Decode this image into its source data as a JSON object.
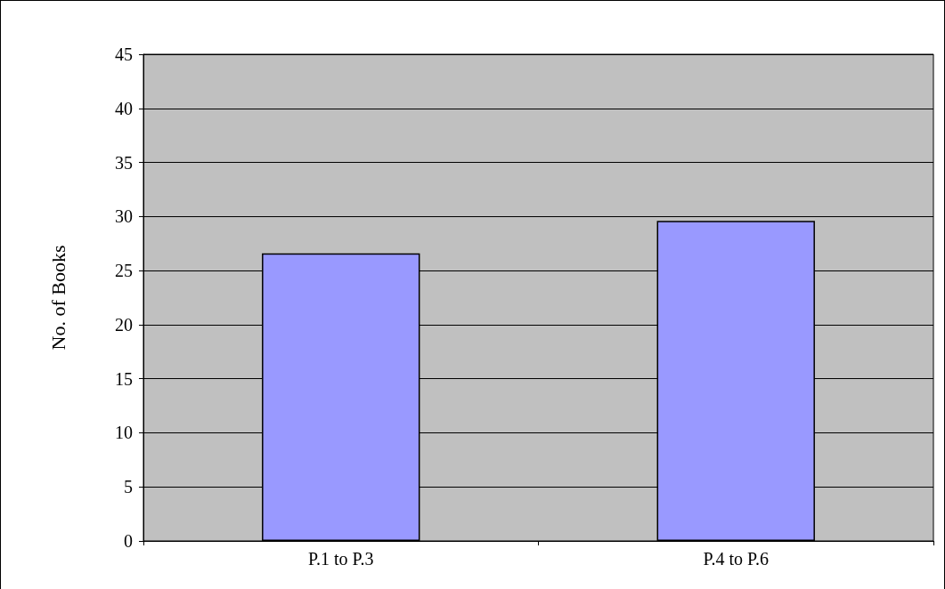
{
  "chart_data": {
    "type": "bar",
    "ylabel": "No. of Books",
    "categories": [
      "P.1 to P.3",
      "P.4 to P.6"
    ],
    "values": [
      26.6,
      29.6
    ],
    "color": "#9999ff",
    "ylim": [
      0,
      45
    ],
    "yticks": [
      0,
      5,
      10,
      15,
      20,
      25,
      30,
      35,
      40,
      45
    ],
    "grid": "y"
  }
}
